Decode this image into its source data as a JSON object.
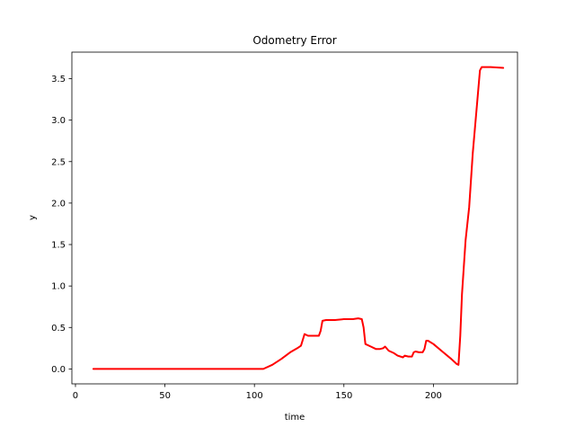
{
  "chart_data": {
    "type": "line",
    "title": "Odometry Error",
    "xlabel": "time",
    "ylabel": "y",
    "xlim": [
      -2,
      247
    ],
    "ylim": [
      -0.18,
      3.82
    ],
    "xticks": [
      0,
      50,
      100,
      150,
      200
    ],
    "xtick_labels": [
      "0",
      "50",
      "100",
      "150",
      "200"
    ],
    "yticks": [
      0.0,
      0.5,
      1.0,
      1.5,
      2.0,
      2.5,
      3.0,
      3.5
    ],
    "ytick_labels": [
      "0.0",
      "0.5",
      "1.0",
      "1.5",
      "2.0",
      "2.5",
      "3.0",
      "3.5"
    ],
    "grid": false,
    "legend": "none",
    "series": [
      {
        "color": "#ff0000",
        "x": [
          10,
          50,
          105,
          110,
          115,
          120,
          124,
          126,
          127,
          128,
          130,
          134,
          136,
          137,
          138,
          140,
          145,
          150,
          155,
          158,
          160,
          161,
          162,
          165,
          168,
          170,
          172,
          173,
          175,
          178,
          180,
          183,
          184,
          186,
          188,
          189,
          190,
          192,
          194,
          195,
          196,
          197,
          200,
          205,
          210,
          213,
          214,
          215,
          216,
          218,
          220,
          222,
          224,
          226,
          227,
          232,
          239
        ],
        "y": [
          0.0,
          0.0,
          0.0,
          0.05,
          0.12,
          0.2,
          0.25,
          0.28,
          0.35,
          0.42,
          0.4,
          0.4,
          0.4,
          0.46,
          0.58,
          0.59,
          0.59,
          0.6,
          0.6,
          0.61,
          0.6,
          0.5,
          0.3,
          0.27,
          0.24,
          0.24,
          0.25,
          0.27,
          0.22,
          0.19,
          0.16,
          0.14,
          0.16,
          0.15,
          0.15,
          0.2,
          0.21,
          0.2,
          0.2,
          0.24,
          0.34,
          0.34,
          0.3,
          0.21,
          0.12,
          0.06,
          0.05,
          0.4,
          0.9,
          1.55,
          1.95,
          2.6,
          3.1,
          3.6,
          3.64,
          3.64,
          3.63
        ]
      }
    ]
  }
}
